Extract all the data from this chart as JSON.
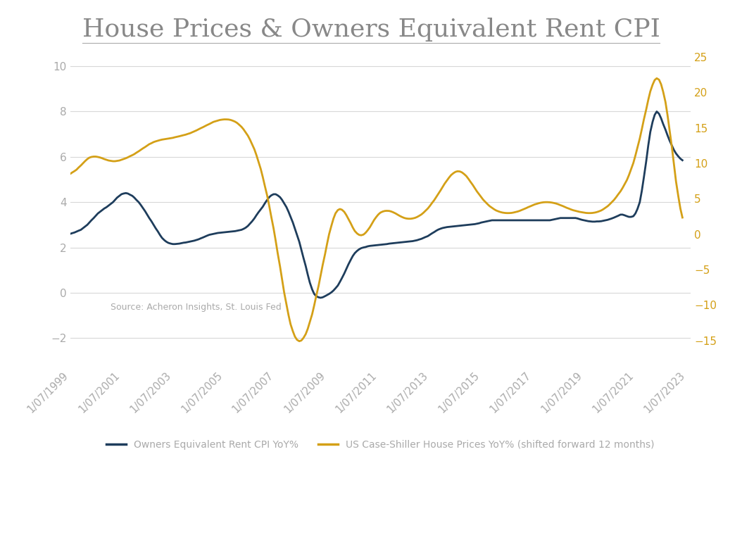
{
  "title": "House Prices & Owners Equivalent Rent CPI",
  "title_fontsize": 26,
  "background_color": "#ffffff",
  "left_color": "#1e3d5c",
  "right_color": "#d4a017",
  "text_color": "#aaaaaa",
  "source_text": "Source: Acheron Insights, St. Louis Fed",
  "ylim_left": [
    -3.2,
    11.5
  ],
  "ylim_right": [
    -18.5,
    28.5
  ],
  "yticks_left": [
    -2,
    0,
    2,
    4,
    6,
    8,
    10
  ],
  "yticks_right": [
    -15,
    -10,
    -5,
    0,
    5,
    10,
    15,
    20,
    25
  ],
  "legend_label_left": "Owners Equivalent Rent CPI YoY%",
  "legend_label_right": "US Case-Shiller House Prices YoY% (shifted forward 12 months)",
  "xtick_labels": [
    "1/07/1999",
    "1/07/2001",
    "1/07/2003",
    "1/07/2005",
    "1/07/2007",
    "1/07/2009",
    "1/07/2011",
    "1/07/2013",
    "1/07/2015",
    "1/07/2017",
    "1/07/2019",
    "1/07/2021",
    "1/07/2023"
  ],
  "xtick_positions": [
    1999.5,
    2001.5,
    2003.5,
    2005.5,
    2007.5,
    2009.5,
    2011.5,
    2013.5,
    2015.5,
    2017.5,
    2019.5,
    2021.5,
    2023.5
  ],
  "owners_rent_x": [
    1999.5,
    1999.58,
    1999.67,
    1999.75,
    1999.83,
    1999.92,
    2000.0,
    2000.08,
    2000.17,
    2000.25,
    2000.33,
    2000.42,
    2000.5,
    2000.58,
    2000.67,
    2000.75,
    2000.83,
    2000.92,
    2001.0,
    2001.08,
    2001.17,
    2001.25,
    2001.33,
    2001.42,
    2001.5,
    2001.58,
    2001.67,
    2001.75,
    2001.83,
    2001.92,
    2002.0,
    2002.08,
    2002.17,
    2002.25,
    2002.33,
    2002.42,
    2002.5,
    2002.58,
    2002.67,
    2002.75,
    2002.83,
    2002.92,
    2003.0,
    2003.08,
    2003.17,
    2003.25,
    2003.33,
    2003.42,
    2003.5,
    2003.58,
    2003.67,
    2003.75,
    2003.83,
    2003.92,
    2004.0,
    2004.08,
    2004.17,
    2004.25,
    2004.33,
    2004.42,
    2004.5,
    2004.58,
    2004.67,
    2004.75,
    2004.83,
    2004.92,
    2005.0,
    2005.08,
    2005.17,
    2005.25,
    2005.33,
    2005.42,
    2005.5,
    2005.58,
    2005.67,
    2005.75,
    2005.83,
    2005.92,
    2006.0,
    2006.08,
    2006.17,
    2006.25,
    2006.33,
    2006.42,
    2006.5,
    2006.58,
    2006.67,
    2006.75,
    2006.83,
    2006.92,
    2007.0,
    2007.08,
    2007.17,
    2007.25,
    2007.33,
    2007.42,
    2007.5,
    2007.58,
    2007.67,
    2007.75,
    2007.83,
    2007.92,
    2008.0,
    2008.08,
    2008.17,
    2008.25,
    2008.33,
    2008.42,
    2008.5,
    2008.58,
    2008.67,
    2008.75,
    2008.83,
    2008.92,
    2009.0,
    2009.08,
    2009.17,
    2009.25,
    2009.33,
    2009.42,
    2009.5,
    2009.58,
    2009.67,
    2009.75,
    2009.83,
    2009.92,
    2010.0,
    2010.08,
    2010.17,
    2010.25,
    2010.33,
    2010.42,
    2010.5,
    2010.58,
    2010.67,
    2010.75,
    2010.83,
    2010.92,
    2011.0,
    2011.08,
    2011.17,
    2011.25,
    2011.33,
    2011.42,
    2011.5,
    2011.58,
    2011.67,
    2011.75,
    2011.83,
    2011.92,
    2012.0,
    2012.08,
    2012.17,
    2012.25,
    2012.33,
    2012.42,
    2012.5,
    2012.58,
    2012.67,
    2012.75,
    2012.83,
    2012.92,
    2013.0,
    2013.08,
    2013.17,
    2013.25,
    2013.33,
    2013.42,
    2013.5,
    2013.58,
    2013.67,
    2013.75,
    2013.83,
    2013.92,
    2014.0,
    2014.08,
    2014.17,
    2014.25,
    2014.33,
    2014.42,
    2014.5,
    2014.58,
    2014.67,
    2014.75,
    2014.83,
    2014.92,
    2015.0,
    2015.08,
    2015.17,
    2015.25,
    2015.33,
    2015.42,
    2015.5,
    2015.58,
    2015.67,
    2015.75,
    2015.83,
    2015.92,
    2016.0,
    2016.08,
    2016.17,
    2016.25,
    2016.33,
    2016.42,
    2016.5,
    2016.58,
    2016.67,
    2016.75,
    2016.83,
    2016.92,
    2017.0,
    2017.08,
    2017.17,
    2017.25,
    2017.33,
    2017.42,
    2017.5,
    2017.58,
    2017.67,
    2017.75,
    2017.83,
    2017.92,
    2018.0,
    2018.08,
    2018.17,
    2018.25,
    2018.33,
    2018.42,
    2018.5,
    2018.58,
    2018.67,
    2018.75,
    2018.83,
    2018.92,
    2019.0,
    2019.08,
    2019.17,
    2019.25,
    2019.33,
    2019.42,
    2019.5,
    2019.58,
    2019.67,
    2019.75,
    2019.83,
    2019.92,
    2020.0,
    2020.08,
    2020.17,
    2020.25,
    2020.33,
    2020.42,
    2020.5,
    2020.58,
    2020.67,
    2020.75,
    2020.83,
    2020.92,
    2021.0,
    2021.08,
    2021.17,
    2021.25,
    2021.33,
    2021.42,
    2021.5,
    2021.58,
    2021.67,
    2021.75,
    2021.83,
    2021.92,
    2022.0,
    2022.08,
    2022.17,
    2022.25,
    2022.33,
    2022.42,
    2022.5,
    2022.58,
    2022.67,
    2022.75,
    2022.83,
    2022.92,
    2023.0,
    2023.08,
    2023.17,
    2023.25,
    2023.33
  ],
  "owners_rent_y": [
    2.6,
    2.63,
    2.66,
    2.7,
    2.74,
    2.78,
    2.85,
    2.92,
    3.0,
    3.1,
    3.2,
    3.3,
    3.4,
    3.5,
    3.58,
    3.65,
    3.72,
    3.78,
    3.85,
    3.92,
    4.0,
    4.1,
    4.2,
    4.28,
    4.35,
    4.38,
    4.4,
    4.38,
    4.33,
    4.28,
    4.2,
    4.1,
    4.0,
    3.88,
    3.75,
    3.6,
    3.45,
    3.3,
    3.15,
    3.0,
    2.85,
    2.7,
    2.55,
    2.42,
    2.32,
    2.25,
    2.2,
    2.17,
    2.15,
    2.15,
    2.16,
    2.17,
    2.19,
    2.21,
    2.22,
    2.24,
    2.26,
    2.28,
    2.3,
    2.33,
    2.36,
    2.4,
    2.44,
    2.48,
    2.52,
    2.56,
    2.58,
    2.6,
    2.62,
    2.64,
    2.65,
    2.66,
    2.67,
    2.68,
    2.69,
    2.7,
    2.71,
    2.72,
    2.74,
    2.76,
    2.78,
    2.82,
    2.87,
    2.95,
    3.05,
    3.15,
    3.28,
    3.42,
    3.55,
    3.68,
    3.8,
    3.95,
    4.1,
    4.22,
    4.3,
    4.35,
    4.35,
    4.3,
    4.22,
    4.1,
    3.95,
    3.78,
    3.58,
    3.35,
    3.1,
    2.83,
    2.55,
    2.25,
    1.9,
    1.55,
    1.18,
    0.8,
    0.45,
    0.15,
    -0.05,
    -0.15,
    -0.2,
    -0.22,
    -0.2,
    -0.15,
    -0.1,
    -0.05,
    0.02,
    0.1,
    0.2,
    0.32,
    0.48,
    0.65,
    0.85,
    1.05,
    1.25,
    1.45,
    1.62,
    1.75,
    1.85,
    1.92,
    1.97,
    2.0,
    2.02,
    2.05,
    2.07,
    2.08,
    2.09,
    2.1,
    2.11,
    2.12,
    2.13,
    2.14,
    2.15,
    2.17,
    2.18,
    2.19,
    2.2,
    2.21,
    2.22,
    2.23,
    2.24,
    2.25,
    2.26,
    2.27,
    2.28,
    2.3,
    2.32,
    2.35,
    2.38,
    2.42,
    2.46,
    2.5,
    2.56,
    2.62,
    2.68,
    2.74,
    2.79,
    2.83,
    2.86,
    2.88,
    2.9,
    2.91,
    2.92,
    2.93,
    2.94,
    2.95,
    2.96,
    2.97,
    2.98,
    2.99,
    3.0,
    3.01,
    3.02,
    3.03,
    3.05,
    3.07,
    3.1,
    3.12,
    3.14,
    3.16,
    3.18,
    3.2,
    3.2,
    3.2,
    3.2,
    3.2,
    3.2,
    3.2,
    3.2,
    3.2,
    3.2,
    3.2,
    3.2,
    3.2,
    3.2,
    3.2,
    3.2,
    3.2,
    3.2,
    3.2,
    3.2,
    3.2,
    3.2,
    3.2,
    3.2,
    3.2,
    3.2,
    3.2,
    3.2,
    3.22,
    3.24,
    3.26,
    3.28,
    3.3,
    3.3,
    3.3,
    3.3,
    3.3,
    3.3,
    3.3,
    3.3,
    3.28,
    3.25,
    3.22,
    3.2,
    3.18,
    3.16,
    3.15,
    3.14,
    3.14,
    3.15,
    3.15,
    3.16,
    3.18,
    3.2,
    3.22,
    3.25,
    3.28,
    3.32,
    3.36,
    3.4,
    3.45,
    3.45,
    3.42,
    3.38,
    3.35,
    3.35,
    3.38,
    3.5,
    3.7,
    4.0,
    4.5,
    5.1,
    5.8,
    6.5,
    7.1,
    7.55,
    7.85,
    8.0,
    7.9,
    7.7,
    7.45,
    7.2,
    6.95,
    6.72,
    6.5,
    6.3,
    6.15,
    6.02,
    5.92,
    5.85
  ],
  "house_prices_x": [
    1999.5,
    1999.58,
    1999.67,
    1999.75,
    1999.83,
    1999.92,
    2000.0,
    2000.08,
    2000.17,
    2000.25,
    2000.33,
    2000.42,
    2000.5,
    2000.58,
    2000.67,
    2000.75,
    2000.83,
    2000.92,
    2001.0,
    2001.08,
    2001.17,
    2001.25,
    2001.33,
    2001.42,
    2001.5,
    2001.58,
    2001.67,
    2001.75,
    2001.83,
    2001.92,
    2002.0,
    2002.08,
    2002.17,
    2002.25,
    2002.33,
    2002.42,
    2002.5,
    2002.58,
    2002.67,
    2002.75,
    2002.83,
    2002.92,
    2003.0,
    2003.08,
    2003.17,
    2003.25,
    2003.33,
    2003.42,
    2003.5,
    2003.58,
    2003.67,
    2003.75,
    2003.83,
    2003.92,
    2004.0,
    2004.08,
    2004.17,
    2004.25,
    2004.33,
    2004.42,
    2004.5,
    2004.58,
    2004.67,
    2004.75,
    2004.83,
    2004.92,
    2005.0,
    2005.08,
    2005.17,
    2005.25,
    2005.33,
    2005.42,
    2005.5,
    2005.58,
    2005.67,
    2005.75,
    2005.83,
    2005.92,
    2006.0,
    2006.08,
    2006.17,
    2006.25,
    2006.33,
    2006.42,
    2006.5,
    2006.58,
    2006.67,
    2006.75,
    2006.83,
    2006.92,
    2007.0,
    2007.08,
    2007.17,
    2007.25,
    2007.33,
    2007.42,
    2007.5,
    2007.58,
    2007.67,
    2007.75,
    2007.83,
    2007.92,
    2008.0,
    2008.08,
    2008.17,
    2008.25,
    2008.33,
    2008.42,
    2008.5,
    2008.58,
    2008.67,
    2008.75,
    2008.83,
    2008.92,
    2009.0,
    2009.08,
    2009.17,
    2009.25,
    2009.33,
    2009.42,
    2009.5,
    2009.58,
    2009.67,
    2009.75,
    2009.83,
    2009.92,
    2010.0,
    2010.08,
    2010.17,
    2010.25,
    2010.33,
    2010.42,
    2010.5,
    2010.58,
    2010.67,
    2010.75,
    2010.83,
    2010.92,
    2011.0,
    2011.08,
    2011.17,
    2011.25,
    2011.33,
    2011.42,
    2011.5,
    2011.58,
    2011.67,
    2011.75,
    2011.83,
    2011.92,
    2012.0,
    2012.08,
    2012.17,
    2012.25,
    2012.33,
    2012.42,
    2012.5,
    2012.58,
    2012.67,
    2012.75,
    2012.83,
    2012.92,
    2013.0,
    2013.08,
    2013.17,
    2013.25,
    2013.33,
    2013.42,
    2013.5,
    2013.58,
    2013.67,
    2013.75,
    2013.83,
    2013.92,
    2014.0,
    2014.08,
    2014.17,
    2014.25,
    2014.33,
    2014.42,
    2014.5,
    2014.58,
    2014.67,
    2014.75,
    2014.83,
    2014.92,
    2015.0,
    2015.08,
    2015.17,
    2015.25,
    2015.33,
    2015.42,
    2015.5,
    2015.58,
    2015.67,
    2015.75,
    2015.83,
    2015.92,
    2016.0,
    2016.08,
    2016.17,
    2016.25,
    2016.33,
    2016.42,
    2016.5,
    2016.58,
    2016.67,
    2016.75,
    2016.83,
    2016.92,
    2017.0,
    2017.08,
    2017.17,
    2017.25,
    2017.33,
    2017.42,
    2017.5,
    2017.58,
    2017.67,
    2017.75,
    2017.83,
    2017.92,
    2018.0,
    2018.08,
    2018.17,
    2018.25,
    2018.33,
    2018.42,
    2018.5,
    2018.58,
    2018.67,
    2018.75,
    2018.83,
    2018.92,
    2019.0,
    2019.08,
    2019.17,
    2019.25,
    2019.33,
    2019.42,
    2019.5,
    2019.58,
    2019.67,
    2019.75,
    2019.83,
    2019.92,
    2020.0,
    2020.08,
    2020.17,
    2020.25,
    2020.33,
    2020.42,
    2020.5,
    2020.58,
    2020.67,
    2020.75,
    2020.83,
    2020.92,
    2021.0,
    2021.08,
    2021.17,
    2021.25,
    2021.33,
    2021.42,
    2021.5,
    2021.58,
    2021.67,
    2021.75,
    2021.83,
    2021.92,
    2022.0,
    2022.08,
    2022.17,
    2022.25,
    2022.33,
    2022.42,
    2022.5,
    2022.58,
    2022.67,
    2022.75,
    2022.83,
    2022.92,
    2023.0,
    2023.08,
    2023.17,
    2023.25,
    2023.33
  ],
  "house_prices_y": [
    8.5,
    8.7,
    8.9,
    9.1,
    9.4,
    9.7,
    10.0,
    10.3,
    10.6,
    10.8,
    10.9,
    10.95,
    10.95,
    10.9,
    10.82,
    10.72,
    10.6,
    10.5,
    10.4,
    10.35,
    10.3,
    10.3,
    10.35,
    10.4,
    10.5,
    10.6,
    10.72,
    10.85,
    11.0,
    11.15,
    11.3,
    11.5,
    11.7,
    11.9,
    12.1,
    12.3,
    12.5,
    12.7,
    12.85,
    13.0,
    13.1,
    13.2,
    13.28,
    13.35,
    13.4,
    13.45,
    13.5,
    13.55,
    13.6,
    13.68,
    13.75,
    13.82,
    13.9,
    13.98,
    14.05,
    14.15,
    14.25,
    14.38,
    14.5,
    14.65,
    14.8,
    14.95,
    15.1,
    15.25,
    15.4,
    15.55,
    15.7,
    15.85,
    15.95,
    16.05,
    16.12,
    16.17,
    16.2,
    16.2,
    16.18,
    16.12,
    16.02,
    15.88,
    15.7,
    15.45,
    15.15,
    14.8,
    14.38,
    13.9,
    13.35,
    12.72,
    12.0,
    11.18,
    10.25,
    9.2,
    8.05,
    6.8,
    5.45,
    4.0,
    2.45,
    0.8,
    -0.9,
    -2.7,
    -4.55,
    -6.4,
    -8.2,
    -9.9,
    -11.4,
    -12.7,
    -13.7,
    -14.45,
    -14.9,
    -15.1,
    -15.0,
    -14.65,
    -14.1,
    -13.35,
    -12.4,
    -11.3,
    -10.05,
    -8.7,
    -7.3,
    -5.85,
    -4.35,
    -2.85,
    -1.38,
    0.0,
    1.2,
    2.2,
    2.95,
    3.4,
    3.55,
    3.45,
    3.15,
    2.7,
    2.15,
    1.55,
    0.95,
    0.45,
    0.1,
    -0.1,
    -0.15,
    -0.05,
    0.2,
    0.55,
    1.0,
    1.5,
    2.0,
    2.45,
    2.8,
    3.05,
    3.2,
    3.28,
    3.3,
    3.28,
    3.2,
    3.08,
    2.92,
    2.75,
    2.58,
    2.42,
    2.3,
    2.22,
    2.18,
    2.18,
    2.22,
    2.3,
    2.42,
    2.58,
    2.78,
    3.02,
    3.3,
    3.62,
    3.98,
    4.38,
    4.8,
    5.25,
    5.72,
    6.2,
    6.68,
    7.15,
    7.6,
    8.0,
    8.35,
    8.62,
    8.8,
    8.88,
    8.85,
    8.72,
    8.5,
    8.2,
    7.82,
    7.4,
    6.95,
    6.5,
    6.05,
    5.62,
    5.22,
    4.85,
    4.52,
    4.22,
    3.95,
    3.72,
    3.52,
    3.35,
    3.22,
    3.12,
    3.05,
    3.0,
    2.98,
    2.98,
    3.0,
    3.05,
    3.12,
    3.2,
    3.3,
    3.42,
    3.55,
    3.68,
    3.82,
    3.95,
    4.08,
    4.2,
    4.3,
    4.38,
    4.45,
    4.5,
    4.52,
    4.52,
    4.5,
    4.46,
    4.4,
    4.32,
    4.22,
    4.1,
    3.98,
    3.85,
    3.72,
    3.6,
    3.48,
    3.38,
    3.3,
    3.22,
    3.15,
    3.1,
    3.05,
    3.0,
    2.98,
    2.98,
    3.0,
    3.05,
    3.12,
    3.22,
    3.35,
    3.52,
    3.72,
    3.95,
    4.22,
    4.52,
    4.85,
    5.22,
    5.62,
    6.05,
    6.52,
    7.05,
    7.65,
    8.35,
    9.15,
    10.05,
    11.1,
    12.25,
    13.5,
    14.82,
    16.2,
    17.6,
    18.95,
    20.15,
    21.1,
    21.75,
    22.0,
    21.8,
    21.15,
    20.1,
    18.65,
    16.8,
    14.65,
    12.28,
    9.82,
    7.45,
    5.35,
    3.62,
    2.35
  ]
}
